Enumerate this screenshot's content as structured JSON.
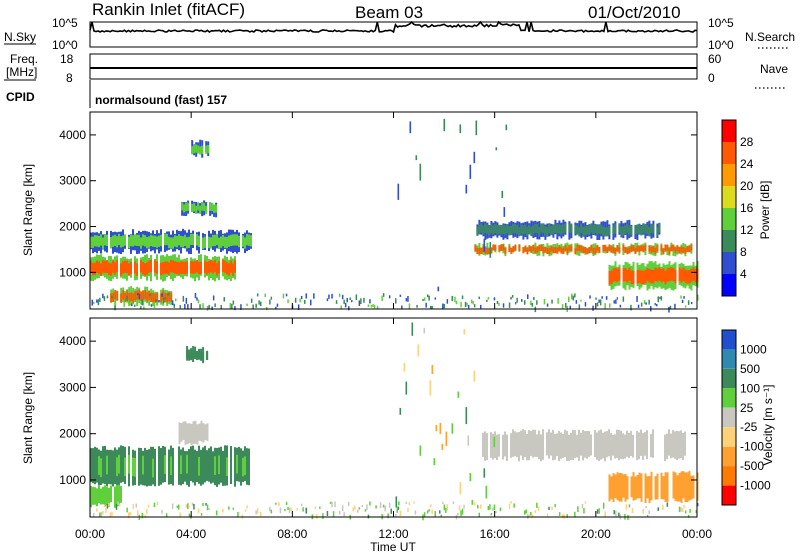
{
  "header": {
    "station": "Rankin Inlet (fitACF)",
    "beam": "Beam 03",
    "date": "01/Oct/2010"
  },
  "noise_panel": {
    "left_label": "N.Sky",
    "right_label": "N.Search",
    "left_ticks": [
      "10^5",
      "10^0"
    ],
    "right_ticks": [
      "10^5",
      "10^0"
    ]
  },
  "freq_panel": {
    "left_label_1": "Freq.",
    "left_label_2": "[MHz]",
    "right_label": "Nave",
    "left_ticks": [
      "18",
      "8"
    ],
    "right_ticks": [
      "60",
      "0"
    ]
  },
  "cpid_panel": {
    "label": "CPID",
    "text": "normalsound (fast) 157"
  },
  "x_axis": {
    "title": "Time UT",
    "ticks": [
      "00:00",
      "04:00",
      "08:00",
      "12:00",
      "16:00",
      "20:00",
      "00:00"
    ],
    "range_hours": [
      0,
      24
    ]
  },
  "power_panel": {
    "ylabel": "Slant Range [km]",
    "yticks": [
      "1000",
      "2000",
      "3000",
      "4000"
    ],
    "ylim": [
      200,
      4500
    ],
    "colorbar": {
      "title": "Power [dB]",
      "labels": [
        "4",
        "8",
        "12",
        "16",
        "20",
        "24",
        "28"
      ],
      "colors": [
        "#0000ff",
        "#2f4ed0",
        "#3a8a5a",
        "#5fcf3c",
        "#dcdc1e",
        "#ff9a00",
        "#ff5a00",
        "#ff0000"
      ]
    }
  },
  "velocity_panel": {
    "ylabel": "Slant Range [km]",
    "yticks": [
      "1000",
      "2000",
      "3000",
      "4000"
    ],
    "ylim": [
      200,
      4500
    ],
    "colorbar": {
      "title": "Velocity [m s⁻¹]",
      "labels": [
        "1000",
        "500",
        "100",
        "25",
        "-25",
        "-100",
        "-500",
        "-1000"
      ],
      "colors": [
        "#1f4fcf",
        "#2f8ab0",
        "#3c8a5a",
        "#5fcf3c",
        "#c8c8c0",
        "#ffd27a",
        "#ffa030",
        "#ff7a00",
        "#ff0000"
      ]
    }
  },
  "chart_data": [
    {
      "type": "heatmap",
      "name": "power",
      "xlabel": "Time UT",
      "ylabel": "Slant Range [km]",
      "xlim": [
        0,
        24
      ],
      "ylim": [
        200,
        4500
      ],
      "zlabel": "Power [dB]",
      "regions": [
        {
          "t0": 0.0,
          "t1": 5.7,
          "r0": 800,
          "r1": 1400,
          "z": 26
        },
        {
          "t0": 0.0,
          "t1": 6.4,
          "r0": 1400,
          "r1": 1950,
          "z": 14
        },
        {
          "t0": 0.8,
          "t1": 3.2,
          "r0": 250,
          "r1": 700,
          "z": 27
        },
        {
          "t0": 4.0,
          "t1": 4.7,
          "r0": 3500,
          "r1": 3900,
          "z": 14
        },
        {
          "t0": 3.6,
          "t1": 5.0,
          "r0": 2200,
          "r1": 2600,
          "z": 12
        },
        {
          "t0": 15.2,
          "t1": 23.8,
          "r0": 1350,
          "r1": 1650,
          "z": 27
        },
        {
          "t0": 15.2,
          "t1": 22.5,
          "r0": 1700,
          "r1": 2150,
          "z": 10
        },
        {
          "t0": 20.5,
          "t1": 24.0,
          "r0": 600,
          "r1": 1250,
          "z": 26
        },
        {
          "t0": 12.0,
          "t1": 16.5,
          "r0": 200,
          "r1": 4500,
          "z": 6
        }
      ]
    },
    {
      "type": "heatmap",
      "name": "velocity",
      "xlabel": "Time UT",
      "ylabel": "Slant Range [km]",
      "xlim": [
        0,
        24
      ],
      "ylim": [
        200,
        4500
      ],
      "zlabel": "Velocity [m s-1]",
      "regions": [
        {
          "t0": 0.0,
          "t1": 6.3,
          "r0": 850,
          "r1": 1750,
          "z": 120
        },
        {
          "t0": 0.0,
          "t1": 1.2,
          "r0": 400,
          "r1": 900,
          "z": 60
        },
        {
          "t0": 3.5,
          "t1": 4.7,
          "r0": 1750,
          "r1": 2300,
          "z": 0
        },
        {
          "t0": 3.8,
          "t1": 4.6,
          "r0": 3500,
          "r1": 3900,
          "z": 200
        },
        {
          "t0": 15.5,
          "t1": 23.5,
          "r0": 1400,
          "r1": 2100,
          "z": 0
        },
        {
          "t0": 20.5,
          "t1": 24.0,
          "r0": 500,
          "r1": 1200,
          "z": -300
        },
        {
          "t0": 12.0,
          "t1": 16.0,
          "r0": 200,
          "r1": 4500,
          "z": -50
        }
      ]
    }
  ]
}
